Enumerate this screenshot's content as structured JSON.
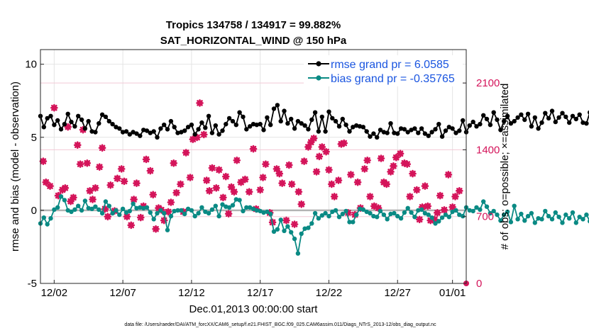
{
  "colors": {
    "rmse": "#000000",
    "bias": "#0a8a84",
    "obs": "#d4145a",
    "legend_text": "#1a55e0",
    "zero_line": "#b4b4b4"
  },
  "chart_data": {
    "type": "line",
    "title_line1": "Tropics 134758 / 134917 = 99.882%",
    "title_line2": "SAT_HORIZONTAL_WIND @ 150 hPa",
    "xlabel": "Dec.01,2013 00:00:00 start",
    "ylabel_left": "rmse and bias (model - observation)",
    "ylabel_right": "# of obs: o=possible; ×=assimilated",
    "x_range_days": [
      0,
      31
    ],
    "ylim_left": [
      -5,
      11
    ],
    "ylim_right": [
      0,
      2450
    ],
    "x_ticks": [
      {
        "day": 1,
        "label": "12/02"
      },
      {
        "day": 6,
        "label": "12/07"
      },
      {
        "day": 11,
        "label": "12/12"
      },
      {
        "day": 16,
        "label": "12/17"
      },
      {
        "day": 21,
        "label": "12/22"
      },
      {
        "day": 26,
        "label": "12/27"
      },
      {
        "day": 30,
        "label": "01/01"
      }
    ],
    "y_ticks_left": [
      {
        "value": -5,
        "label": "-5"
      },
      {
        "value": 0,
        "label": "0"
      },
      {
        "value": 5,
        "label": "5"
      },
      {
        "value": 10,
        "label": "10"
      }
    ],
    "y_ticks_right": [
      {
        "value": 0,
        "label": "0"
      },
      {
        "value": 700,
        "label": "700"
      },
      {
        "value": 1400,
        "label": "1400"
      },
      {
        "value": 2100,
        "label": "2100"
      }
    ],
    "legend": {
      "rmse_label": "rmse grand pr = 6.0585",
      "bias_label": "bias grand pr = -0.35765"
    },
    "footnote": "data file: /Users/raeder/DAI/ATM_forcXX/CAM6_setup/f.e21.FHIST_BGC.f09_025.CAM6assim.011/Diags_NTrS_2013-12/obs_diag_output.nc",
    "series": [
      {
        "name": "rmse",
        "day_start": 0.0,
        "day_step": 0.25,
        "values": [
          6.45,
          5.7,
          6.3,
          6.45,
          5.85,
          6.15,
          5.55,
          5.9,
          6.6,
          6.05,
          5.75,
          6.45,
          6.2,
          5.6,
          6.1,
          5.4,
          5.35,
          5.95,
          6.55,
          6.4,
          6.1,
          5.9,
          5.7,
          5.6,
          5.35,
          5.4,
          5.2,
          5.35,
          5.25,
          5.1,
          5.5,
          5.45,
          5.3,
          5.4,
          5.0,
          5.6,
          5.85,
          5.55,
          6.1,
          5.7,
          5.3,
          5.35,
          5.45,
          5.7,
          5.85,
          5.2,
          5.55,
          6.0,
          5.65,
          6.45,
          5.3,
          5.8,
          5.2,
          5.45,
          5.9,
          6.3,
          6.1,
          5.85,
          6.7,
          6.4,
          5.55,
          5.75,
          5.9,
          5.85,
          5.9,
          5.5,
          6.35,
          5.85,
          6.95,
          7.2,
          6.1,
          6.8,
          5.95,
          6.25,
          5.6,
          6.1,
          5.95,
          5.8,
          5.55,
          6.2,
          6.7,
          5.4,
          6.4,
          5.4,
          6.75,
          6.3,
          6.1,
          5.75,
          6.25,
          5.85,
          5.4,
          5.7,
          5.8,
          5.75,
          5.7,
          5.4,
          5.05,
          5.25,
          5.0,
          5.5,
          5.35,
          5.3,
          5.95,
          5.3,
          5.25,
          5.6,
          5.55,
          5.35,
          5.5,
          5.6,
          5.3,
          5.6,
          5.25,
          5.1,
          5.35,
          5.55,
          5.9,
          5.05,
          5.45,
          5.7,
          5.6,
          5.3,
          5.45,
          6.15,
          5.35,
          5.8,
          6.05,
          5.75,
          5.9,
          6.5,
          6.25,
          5.85,
          6.7,
          6.2,
          5.5,
          6.1,
          6.45,
          5.95,
          6.1,
          6.35,
          6.55,
          6.2,
          6.6,
          5.75,
          6.35,
          5.6,
          6.0,
          6.65,
          6.3,
          6.8,
          6.05,
          6.35,
          6.65,
          6.4,
          6.0,
          6.45,
          6.25,
          6.55,
          6.0,
          5.95,
          6.7,
          7.0,
          6.1,
          6.45,
          6.0,
          6.15,
          7.1,
          7.7,
          7.35,
          6.9,
          7.2,
          7.0,
          6.8,
          6.45,
          5.85,
          6.3,
          5.7,
          6.25,
          5.7,
          5.7,
          5.4,
          5.75,
          5.5,
          5.6,
          5.35,
          5.75,
          5.5,
          5.85,
          6.65,
          6.15,
          5.8,
          6.55,
          6.4,
          6.65,
          6.75,
          6.25,
          6.85,
          6.55,
          6.4,
          6.3,
          6.7,
          6.45,
          6.75,
          6.85,
          6.5,
          7.0,
          6.6,
          6.8,
          7.05,
          7.5
        ]
      },
      {
        "name": "bias",
        "day_start": 0.0,
        "day_step": 0.25,
        "values": [
          -0.9,
          -0.5,
          -0.95,
          -0.55,
          0.05,
          0.2,
          0.95,
          0.7,
          0.0,
          -0.1,
          0.05,
          0.3,
          0.0,
          0.65,
          0.15,
          0.1,
          0.25,
          0.05,
          -0.2,
          0.6,
          0.3,
          -0.2,
          0.0,
          -0.3,
          0.1,
          -0.15,
          -0.05,
          0.45,
          0.15,
          0.2,
          0.15,
          0.2,
          -0.15,
          -0.6,
          -0.2,
          0.0,
          -0.2,
          -1.35,
          -0.4,
          -0.05,
          0.0,
          0.0,
          -0.25,
          0.1,
          0.0,
          -0.4,
          -0.2,
          0.2,
          -0.1,
          -0.2,
          0.05,
          0.3,
          -0.4,
          0.4,
          0.25,
          0.2,
          0.35,
          0.75,
          0.7,
          -0.05,
          0.2,
          0.2,
          0.1,
          0.0,
          -0.05,
          -0.15,
          -0.1,
          -0.25,
          -1.45,
          -1.3,
          -0.65,
          -1.4,
          -1.1,
          -1.5,
          -1.95,
          -2.95,
          -1.6,
          -1.25,
          -1.2,
          -0.9,
          -0.2,
          -0.55,
          -0.35,
          -0.2,
          -0.4,
          -0.1,
          0.0,
          -0.45,
          -0.25,
          -0.05,
          -0.8,
          -0.8,
          -0.3,
          0.1,
          0.05,
          -0.1,
          -0.2,
          -0.4,
          -0.45,
          -0.05,
          -0.3,
          -0.6,
          -0.25,
          -0.2,
          -0.4,
          -0.55,
          -0.15,
          0.15,
          -0.15,
          -0.45,
          0.0,
          0.05,
          -0.2,
          -0.3,
          -0.5,
          -0.9,
          -0.75,
          -0.5,
          -0.3,
          -0.45,
          -0.1,
          0.0,
          -0.3,
          -0.4,
          0.2,
          0.0,
          -0.05,
          0.2,
          0.05,
          0.6,
          0.25,
          -0.2,
          -0.05,
          -0.3,
          -0.7,
          -0.3,
          -0.1,
          -0.8,
          0.3,
          -0.6,
          -0.25,
          -0.7,
          -0.4,
          -0.2,
          -0.85,
          -0.55,
          -0.6,
          -0.05,
          -0.4,
          -0.6,
          -0.15,
          -0.45,
          -0.85,
          -0.3,
          -0.55,
          -0.15,
          -0.85,
          -0.45,
          -0.6,
          -0.3,
          -0.75,
          -0.1,
          -0.05,
          -0.6,
          -0.4,
          -0.6,
          -0.45,
          -0.2,
          -0.4,
          -0.25,
          -0.55,
          -0.35,
          -0.2,
          -0.3,
          -0.85,
          -0.35,
          -0.95,
          -0.55,
          -0.35,
          -0.6,
          -1.35,
          -0.95,
          -0.4,
          -0.65,
          -0.45,
          -0.5,
          0.15,
          -0.2,
          -0.25,
          0.3,
          -0.15,
          -0.35,
          0.25,
          -0.35,
          0.35,
          -0.2,
          0.05,
          0.1,
          0.0,
          0.55,
          -0.15,
          -1.2,
          -0.6,
          -0.85
        ]
      },
      {
        "name": "obs_assimilated",
        "points": [
          [
            0.2,
            1280
          ],
          [
            0.4,
            1060
          ],
          [
            0.7,
            1020
          ],
          [
            1.0,
            1840
          ],
          [
            1.3,
            920
          ],
          [
            1.6,
            980
          ],
          [
            1.8,
            1000
          ],
          [
            2.0,
            1640
          ],
          [
            2.2,
            860
          ],
          [
            2.4,
            900
          ],
          [
            2.7,
            1450
          ],
          [
            2.9,
            1250
          ],
          [
            3.1,
            1610
          ],
          [
            3.4,
            1260
          ],
          [
            3.6,
            970
          ],
          [
            3.8,
            880
          ],
          [
            4.0,
            1000
          ],
          [
            4.3,
            1220
          ],
          [
            4.5,
            1420
          ],
          [
            4.7,
            780
          ],
          [
            4.9,
            700
          ],
          [
            5.1,
            1030
          ],
          [
            5.4,
            760
          ],
          [
            5.6,
            1100
          ],
          [
            5.9,
            1200
          ],
          [
            6.1,
            1070
          ],
          [
            6.3,
            700
          ],
          [
            6.6,
            610
          ],
          [
            6.8,
            880
          ],
          [
            7.0,
            1050
          ],
          [
            7.3,
            690
          ],
          [
            7.5,
            810
          ],
          [
            7.7,
            1300
          ],
          [
            8.0,
            1180
          ],
          [
            8.2,
            930
          ],
          [
            8.4,
            570
          ],
          [
            8.6,
            790
          ],
          [
            8.8,
            770
          ],
          [
            9.0,
            660
          ],
          [
            9.3,
            750
          ],
          [
            9.5,
            850
          ],
          [
            9.7,
            1260
          ],
          [
            9.9,
            950
          ],
          [
            10.2,
            1040
          ],
          [
            10.4,
            750
          ],
          [
            10.6,
            1370
          ],
          [
            10.9,
            1110
          ],
          [
            11.1,
            1510
          ],
          [
            11.4,
            1530
          ],
          [
            11.6,
            1890
          ],
          [
            11.9,
            1560
          ],
          [
            12.1,
            1080
          ],
          [
            12.3,
            970
          ],
          [
            12.5,
            1210
          ],
          [
            12.8,
            1000
          ],
          [
            13.0,
            1190
          ],
          [
            13.3,
            900
          ],
          [
            13.5,
            1120
          ],
          [
            13.7,
            730
          ],
          [
            13.9,
            1010
          ],
          [
            14.1,
            960
          ],
          [
            14.3,
            1290
          ],
          [
            14.6,
            1060
          ],
          [
            14.9,
            1090
          ],
          [
            15.2,
            960
          ],
          [
            15.5,
            1410
          ],
          [
            15.7,
            780
          ],
          [
            16.0,
            980
          ],
          [
            16.2,
            1110
          ],
          [
            16.4,
            1250
          ],
          [
            16.7,
            740
          ],
          [
            16.9,
            640
          ],
          [
            17.2,
            1200
          ],
          [
            17.4,
            1150
          ],
          [
            17.6,
            1050
          ],
          [
            17.9,
            660
          ],
          [
            18.1,
            1240
          ],
          [
            18.3,
            1040
          ],
          [
            18.5,
            620
          ],
          [
            18.8,
            960
          ],
          [
            19.0,
            830
          ],
          [
            19.2,
            1280
          ],
          [
            19.5,
            1430
          ],
          [
            19.7,
            1480
          ],
          [
            19.9,
            1520
          ],
          [
            20.1,
            1170
          ],
          [
            20.3,
            1330
          ],
          [
            20.5,
            1430
          ],
          [
            20.8,
            1380
          ],
          [
            21.0,
            1190
          ],
          [
            21.2,
            1040
          ],
          [
            21.4,
            910
          ],
          [
            21.7,
            1080
          ],
          [
            21.9,
            1460
          ],
          [
            22.1,
            1470
          ],
          [
            22.4,
            740
          ],
          [
            22.6,
            1140
          ],
          [
            22.9,
            720
          ],
          [
            23.1,
            1060
          ],
          [
            23.3,
            790
          ],
          [
            23.6,
            1200
          ],
          [
            23.8,
            1290
          ],
          [
            24.0,
            910
          ],
          [
            24.3,
            810
          ],
          [
            24.6,
            790
          ],
          [
            24.8,
            1310
          ],
          [
            25.0,
            1060
          ],
          [
            25.2,
            1040
          ],
          [
            25.5,
            1170
          ],
          [
            25.7,
            1230
          ],
          [
            25.9,
            1320
          ],
          [
            26.2,
            1360
          ],
          [
            26.5,
            1260
          ],
          [
            26.7,
            1250
          ],
          [
            26.9,
            910
          ],
          [
            27.1,
            1150
          ],
          [
            27.4,
            980
          ],
          [
            27.6,
            670
          ],
          [
            27.8,
            800
          ],
          [
            28.0,
            1020
          ],
          [
            28.2,
            810
          ],
          [
            28.4,
            660
          ],
          [
            28.7,
            670
          ],
          [
            28.9,
            740
          ],
          [
            29.1,
            920
          ],
          [
            29.4,
            770
          ],
          [
            29.7,
            1140
          ],
          [
            30.0,
            800
          ],
          [
            30.2,
            910
          ],
          [
            30.5,
            970
          ]
        ]
      }
    ]
  }
}
